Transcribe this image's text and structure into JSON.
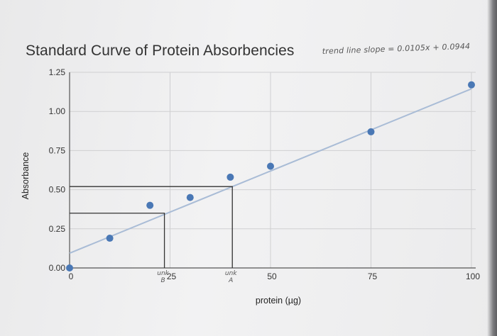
{
  "chart_data": {
    "type": "scatter",
    "title": "Standard Curve of Protein Absorbencies",
    "annotation": "trend line slope = 0.0105x + 0.0944",
    "xlabel": "protein (µg)",
    "ylabel": "Absorbance",
    "xlim": [
      0,
      100
    ],
    "ylim": [
      0,
      1.25
    ],
    "x_ticks": [
      "0",
      "25",
      "50",
      "75",
      "100"
    ],
    "y_ticks": [
      "0.00",
      "0.25",
      "0.50",
      "0.75",
      "1.00",
      "1.25"
    ],
    "grid": true,
    "points": [
      {
        "x": 0,
        "y": 0.0
      },
      {
        "x": 10,
        "y": 0.19
      },
      {
        "x": 20,
        "y": 0.4
      },
      {
        "x": 30,
        "y": 0.45
      },
      {
        "x": 40,
        "y": 0.58
      },
      {
        "x": 50,
        "y": 0.65
      },
      {
        "x": 75,
        "y": 0.87
      },
      {
        "x": 100,
        "y": 1.17
      }
    ],
    "trendline": {
      "slope": 0.0105,
      "intercept": 0.0944
    },
    "markers": [
      {
        "label_top": "unk",
        "label_bottom": "B",
        "x": 23.6,
        "y": 0.35
      },
      {
        "label_top": "unk",
        "label_bottom": "A",
        "x": 40.5,
        "y": 0.52
      }
    ],
    "colors": {
      "points": "#4a78b5",
      "trendline": "#a9bcd6",
      "grid": "#cfcfd1",
      "axis": "#555555",
      "hand": "#333333"
    }
  }
}
